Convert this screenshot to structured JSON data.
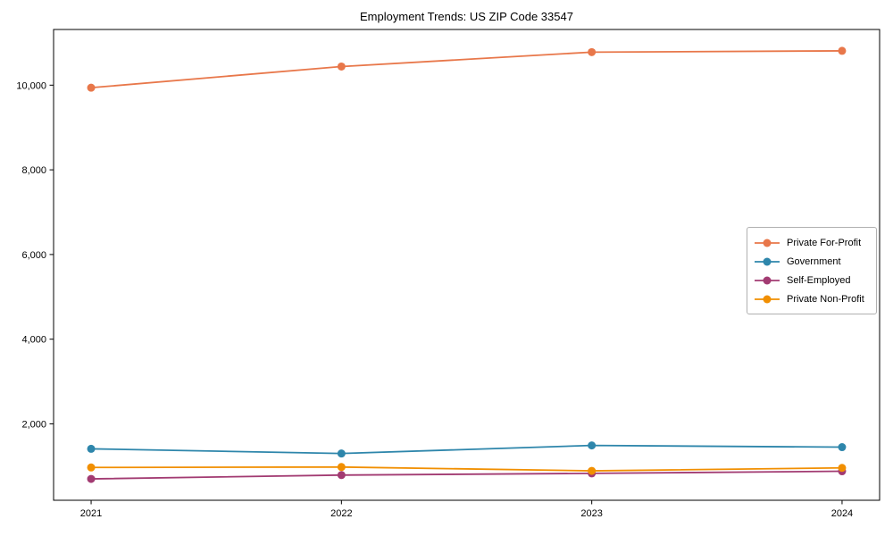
{
  "chart_data": {
    "type": "line",
    "title": "Employment Trends: US ZIP Code 33547",
    "xlabel": "",
    "ylabel": "",
    "x": [
      2021,
      2022,
      2023,
      2024
    ],
    "x_tick_labels": [
      "2021",
      "2022",
      "2023",
      "2024"
    ],
    "yticks": [
      2000,
      4000,
      6000,
      8000,
      10000
    ],
    "ytick_labels": [
      "2,000",
      "4,000",
      "6,000",
      "8,000",
      "10,000"
    ],
    "xlim": [
      2020.85,
      2024.15
    ],
    "ylim": [
      195,
      11315
    ],
    "grid": false,
    "legend_position": "center-right",
    "marker": "circle",
    "series": [
      {
        "name": "Private For-Profit",
        "color": "#E8774A",
        "values": [
          9940,
          10440,
          10780,
          10810
        ]
      },
      {
        "name": "Government",
        "color": "#2E86AB",
        "values": [
          1410,
          1300,
          1490,
          1450
        ]
      },
      {
        "name": "Self-Employed",
        "color": "#A23B72",
        "values": [
          700,
          790,
          830,
          880
        ]
      },
      {
        "name": "Private Non-Profit",
        "color": "#F18F01",
        "values": [
          970,
          980,
          890,
          960
        ]
      }
    ],
    "spine_color": "#000000",
    "tick_color": "#000000"
  }
}
